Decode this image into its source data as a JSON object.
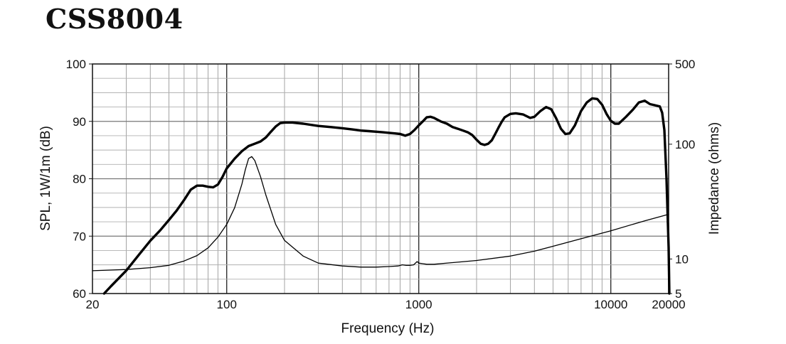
{
  "chart_data": {
    "type": "line",
    "title": "CSS8004",
    "xlabel": "Frequency (Hz)",
    "ylabel": "SPL, 1W/1m (dB)",
    "ylabel_right": "Impedance (ohms)",
    "x_scale": "log",
    "xlim": [
      20,
      20000
    ],
    "ylim": [
      60,
      100
    ],
    "ylim_right": [
      5,
      500
    ],
    "y_right_scale": "log",
    "x_ticks": [
      "20",
      "100",
      "1000",
      "10000",
      "20000"
    ],
    "y_ticks": [
      "60",
      "70",
      "80",
      "90",
      "100"
    ],
    "y_right_ticks": [
      "5",
      "10",
      "100",
      "500"
    ],
    "grid": true,
    "series": [
      {
        "axis": "left",
        "points": [
          [
            23,
            60
          ],
          [
            25,
            61.3
          ],
          [
            30,
            64
          ],
          [
            35,
            66.8
          ],
          [
            40,
            69.2
          ],
          [
            45,
            71
          ],
          [
            50,
            72.8
          ],
          [
            55,
            74.5
          ],
          [
            60,
            76.3
          ],
          [
            65,
            78.1
          ],
          [
            70,
            78.8
          ],
          [
            75,
            78.8
          ],
          [
            80,
            78.6
          ],
          [
            85,
            78.5
          ],
          [
            90,
            79
          ],
          [
            95,
            80.3
          ],
          [
            100,
            81.8
          ],
          [
            110,
            83.5
          ],
          [
            120,
            84.8
          ],
          [
            130,
            85.7
          ],
          [
            140,
            86.1
          ],
          [
            150,
            86.5
          ],
          [
            160,
            87.2
          ],
          [
            170,
            88.2
          ],
          [
            180,
            89.1
          ],
          [
            190,
            89.7
          ],
          [
            200,
            89.8
          ],
          [
            220,
            89.8
          ],
          [
            250,
            89.6
          ],
          [
            300,
            89.2
          ],
          [
            350,
            89
          ],
          [
            400,
            88.8
          ],
          [
            450,
            88.6
          ],
          [
            500,
            88.4
          ],
          [
            550,
            88.3
          ],
          [
            600,
            88.2
          ],
          [
            650,
            88.1
          ],
          [
            700,
            88
          ],
          [
            750,
            87.9
          ],
          [
            800,
            87.8
          ],
          [
            850,
            87.5
          ],
          [
            900,
            87.8
          ],
          [
            950,
            88.5
          ],
          [
            1000,
            89.3
          ],
          [
            1050,
            90
          ],
          [
            1100,
            90.7
          ],
          [
            1150,
            90.8
          ],
          [
            1200,
            90.6
          ],
          [
            1300,
            90
          ],
          [
            1400,
            89.6
          ],
          [
            1500,
            89
          ],
          [
            1600,
            88.7
          ],
          [
            1700,
            88.4
          ],
          [
            1800,
            88.1
          ],
          [
            1900,
            87.6
          ],
          [
            2000,
            86.8
          ],
          [
            2100,
            86.1
          ],
          [
            2200,
            85.9
          ],
          [
            2300,
            86.1
          ],
          [
            2400,
            86.7
          ],
          [
            2500,
            87.8
          ],
          [
            2600,
            88.9
          ],
          [
            2700,
            89.9
          ],
          [
            2800,
            90.7
          ],
          [
            3000,
            91.3
          ],
          [
            3200,
            91.4
          ],
          [
            3500,
            91.2
          ],
          [
            3800,
            90.6
          ],
          [
            4000,
            90.8
          ],
          [
            4300,
            91.8
          ],
          [
            4600,
            92.5
          ],
          [
            4900,
            92.1
          ],
          [
            5200,
            90.5
          ],
          [
            5500,
            88.7
          ],
          [
            5800,
            87.8
          ],
          [
            6100,
            87.9
          ],
          [
            6500,
            89.3
          ],
          [
            7000,
            91.8
          ],
          [
            7500,
            93.3
          ],
          [
            8000,
            94
          ],
          [
            8500,
            93.9
          ],
          [
            9000,
            92.9
          ],
          [
            9500,
            91.3
          ],
          [
            10000,
            90.1
          ],
          [
            10500,
            89.6
          ],
          [
            11000,
            89.6
          ],
          [
            12000,
            90.8
          ],
          [
            13000,
            92
          ],
          [
            14000,
            93.3
          ],
          [
            15000,
            93.6
          ],
          [
            16000,
            93
          ],
          [
            17000,
            92.8
          ],
          [
            18000,
            92.6
          ],
          [
            18500,
            91.5
          ],
          [
            19000,
            88.5
          ],
          [
            19500,
            80
          ],
          [
            20000,
            68
          ],
          [
            20200,
            60
          ]
        ]
      },
      {
        "axis": "right",
        "points": [
          [
            20,
            7.9
          ],
          [
            30,
            8.1
          ],
          [
            40,
            8.4
          ],
          [
            50,
            8.8
          ],
          [
            60,
            9.6
          ],
          [
            70,
            10.7
          ],
          [
            80,
            12.5
          ],
          [
            90,
            15.5
          ],
          [
            100,
            20
          ],
          [
            110,
            28
          ],
          [
            120,
            45
          ],
          [
            125,
            60
          ],
          [
            130,
            75
          ],
          [
            135,
            78
          ],
          [
            140,
            72
          ],
          [
            150,
            52
          ],
          [
            160,
            36
          ],
          [
            180,
            20
          ],
          [
            200,
            14.5
          ],
          [
            250,
            10.6
          ],
          [
            300,
            9.2
          ],
          [
            400,
            8.7
          ],
          [
            500,
            8.5
          ],
          [
            600,
            8.5
          ],
          [
            700,
            8.6
          ],
          [
            780,
            8.7
          ],
          [
            820,
            8.9
          ],
          [
            860,
            8.8
          ],
          [
            900,
            8.8
          ],
          [
            940,
            8.9
          ],
          [
            980,
            9.5
          ],
          [
            1000,
            9.2
          ],
          [
            1050,
            9.1
          ],
          [
            1100,
            9.0
          ],
          [
            1200,
            9.0
          ],
          [
            1500,
            9.3
          ],
          [
            2000,
            9.7
          ],
          [
            3000,
            10.6
          ],
          [
            4000,
            11.7
          ],
          [
            5000,
            12.9
          ],
          [
            7000,
            15
          ],
          [
            10000,
            17.6
          ],
          [
            15000,
            21.5
          ],
          [
            20000,
            24.5
          ]
        ]
      }
    ]
  }
}
